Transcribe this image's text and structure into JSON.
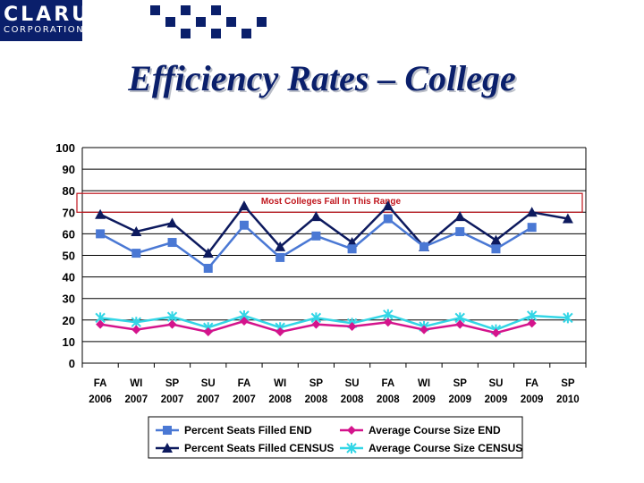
{
  "logo": {
    "main": "CLARUS",
    "sub": "CORPORATION"
  },
  "colors": {
    "brand": "#0a1f6b",
    "range": "#c0161d"
  },
  "chart_data": {
    "type": "line",
    "title": "Efficiency Rates – College",
    "categories": [
      [
        "FA",
        "2006"
      ],
      [
        "WI",
        "2007"
      ],
      [
        "SP",
        "2007"
      ],
      [
        "SU",
        "2007"
      ],
      [
        "FA",
        "2007"
      ],
      [
        "WI",
        "2008"
      ],
      [
        "SP",
        "2008"
      ],
      [
        "SU",
        "2008"
      ],
      [
        "FA",
        "2008"
      ],
      [
        "WI",
        "2009"
      ],
      [
        "SP",
        "2009"
      ],
      [
        "SU",
        "2009"
      ],
      [
        "FA",
        "2009"
      ],
      [
        "SP",
        "2010"
      ]
    ],
    "ylim": [
      0,
      100
    ],
    "yticks": [
      0,
      10,
      20,
      30,
      40,
      50,
      60,
      70,
      80,
      90,
      100
    ],
    "grid": true,
    "legend_placement": "bottom",
    "annotation": {
      "text": "Most Colleges Fall In This Range",
      "range": [
        70,
        80
      ]
    },
    "series": [
      {
        "name": "Percent Seats Filled END",
        "color": "#4a78d4",
        "marker": "square",
        "values": [
          60,
          51,
          56,
          44,
          64,
          49,
          59,
          53,
          67,
          54,
          61,
          53,
          63,
          null
        ]
      },
      {
        "name": "Average Course Size END",
        "color": "#d4148c",
        "marker": "diamond",
        "values": [
          18,
          15.5,
          18,
          14.5,
          19.5,
          14.5,
          18,
          17,
          19,
          15.5,
          18,
          14,
          18.5,
          null
        ]
      },
      {
        "name": "Percent Seats Filled CENSUS",
        "color": "#0d1a5e",
        "marker": "triangle",
        "values": [
          69,
          61,
          65,
          51,
          73,
          54,
          68,
          56,
          73,
          54,
          68,
          57,
          70,
          67
        ]
      },
      {
        "name": "Average Course Size CENSUS",
        "color": "#33d6e6",
        "marker": "x",
        "values": [
          21,
          19,
          21.5,
          16.5,
          22,
          16.5,
          21,
          18.5,
          22.5,
          17,
          21,
          15.5,
          22,
          21
        ]
      }
    ]
  }
}
